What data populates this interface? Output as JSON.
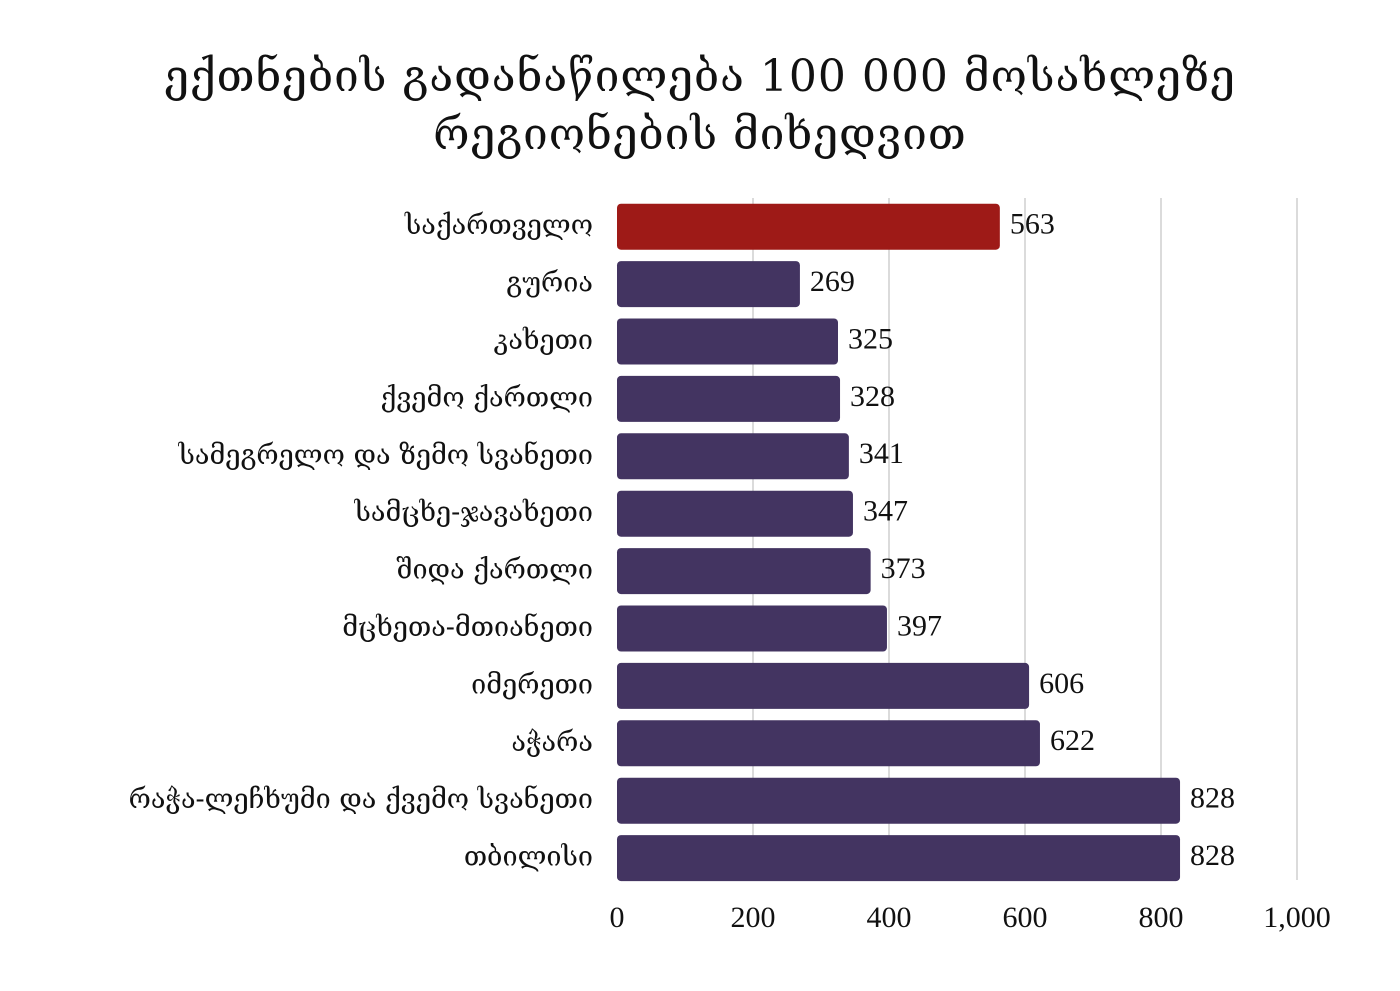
{
  "chart_data": {
    "type": "bar",
    "orientation": "horizontal",
    "title_lines": [
      "ექთნების გადანაწილება 100 000 მოსახლეზე",
      "რეგიონების მიხედვით"
    ],
    "categories": [
      "საქართველო",
      "გურია",
      "კახეთი",
      "ქვემო ქართლი",
      "სამეგრელო და ზემო სვანეთი",
      "სამცხე-ჯავახეთი",
      "შიდა ქართლი",
      "მცხეთა-მთიანეთი",
      "იმერეთი",
      "აჭარა",
      "რაჭა-ლეჩხუმი და ქვემო სვანეთი",
      "თბილისი"
    ],
    "values": [
      563,
      269,
      325,
      328,
      341,
      347,
      373,
      397,
      606,
      622,
      828,
      828
    ],
    "xlim": [
      0,
      1000
    ],
    "x_ticks": [
      0,
      200,
      400,
      600,
      800,
      1000
    ],
    "x_tick_labels": [
      "0",
      "200",
      "400",
      "600",
      "800",
      "1,000"
    ],
    "grid": true,
    "legend": "none",
    "colors": {
      "highlight": "#9e1a17",
      "bar": "#433461",
      "grid": "#cfcfcf",
      "text": "#111111"
    },
    "highlight_category": "საქართველო"
  }
}
